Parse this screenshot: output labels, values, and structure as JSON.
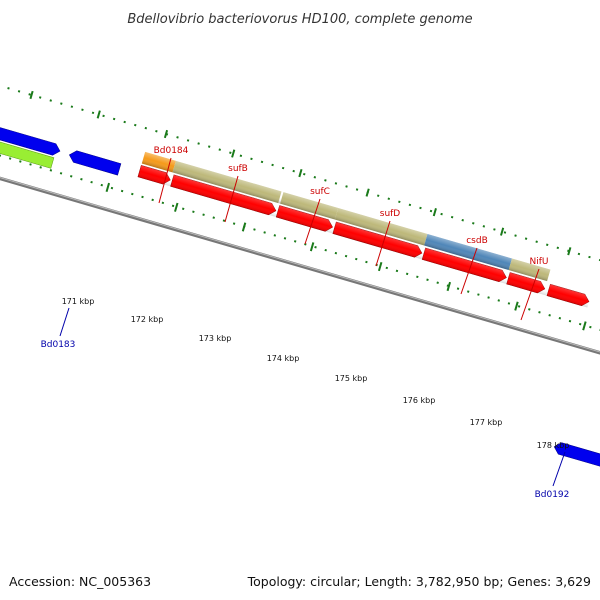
{
  "title": "Bdellovibrio bacteriovorus HD100, complete genome",
  "footer": {
    "accession": "Accession: NC_005363",
    "summary": "Topology: circular; Length: 3,782,950 bp; Genes: 3,629"
  },
  "colors": {
    "backbone": "#888888",
    "tick": "#1a7a1a",
    "gene_forward": "#ff0000",
    "gene_reverse": "#0000ee",
    "label_red": "#cc0000",
    "label_blue": "#0000aa",
    "operon_tan": "#bdb87a",
    "operon_orange": "#f59a1a",
    "operon_steel": "#4f86b8",
    "feature_lime": "#99ee33"
  },
  "ticks": [
    "171 kbp",
    "172 kbp",
    "173 kbp",
    "174 kbp",
    "175 kbp",
    "176 kbp",
    "177 kbp",
    "178 kbp"
  ],
  "gene_labels": [
    {
      "text": "Bd0183",
      "color": "blue"
    },
    {
      "text": "Bd0184",
      "color": "red"
    },
    {
      "text": "sufB",
      "color": "red"
    },
    {
      "text": "sufC",
      "color": "red"
    },
    {
      "text": "sufD",
      "color": "red"
    },
    {
      "text": "csdB",
      "color": "red"
    },
    {
      "text": "NifU",
      "color": "red"
    },
    {
      "text": "Bd0192",
      "color": "blue"
    }
  ]
}
